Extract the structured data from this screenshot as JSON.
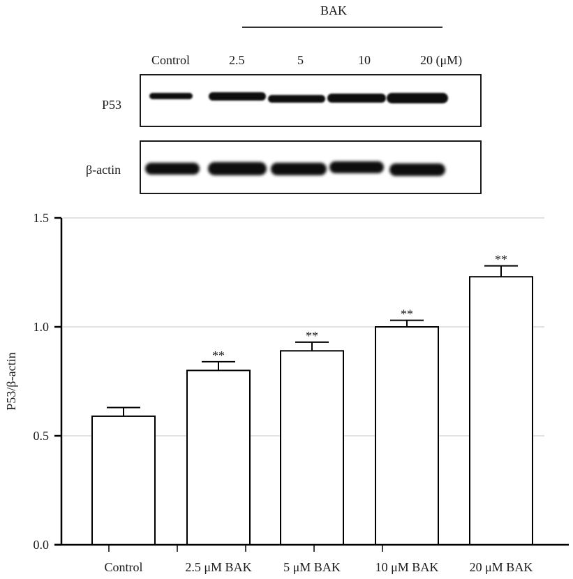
{
  "blot": {
    "treatment_label": "BAK",
    "lane_labels": [
      "Control",
      "2.5",
      "5",
      "10",
      "20 (μM)"
    ],
    "row_labels": [
      "P53",
      "β-actin"
    ]
  },
  "chart_data": {
    "type": "bar",
    "title": "",
    "xlabel": "",
    "ylabel": "P53/β-actin",
    "categories": [
      "Control",
      "2.5 μM BAK",
      "5 μM BAK",
      "10 μM BAK",
      "20 μM BAK"
    ],
    "values": [
      0.59,
      0.8,
      0.89,
      1.0,
      1.23
    ],
    "error": [
      0.04,
      0.04,
      0.04,
      0.03,
      0.05
    ],
    "significance": [
      "",
      "**",
      "**",
      "**",
      "**"
    ],
    "ylim": [
      0.0,
      1.5
    ],
    "yticks": [
      "0.0",
      "0.5",
      "1.0",
      "1.5"
    ],
    "grid": true,
    "legend": null,
    "bar_fill": "#ffffff",
    "bar_edge": "#000000",
    "grid_color": "#d9d9d9"
  }
}
